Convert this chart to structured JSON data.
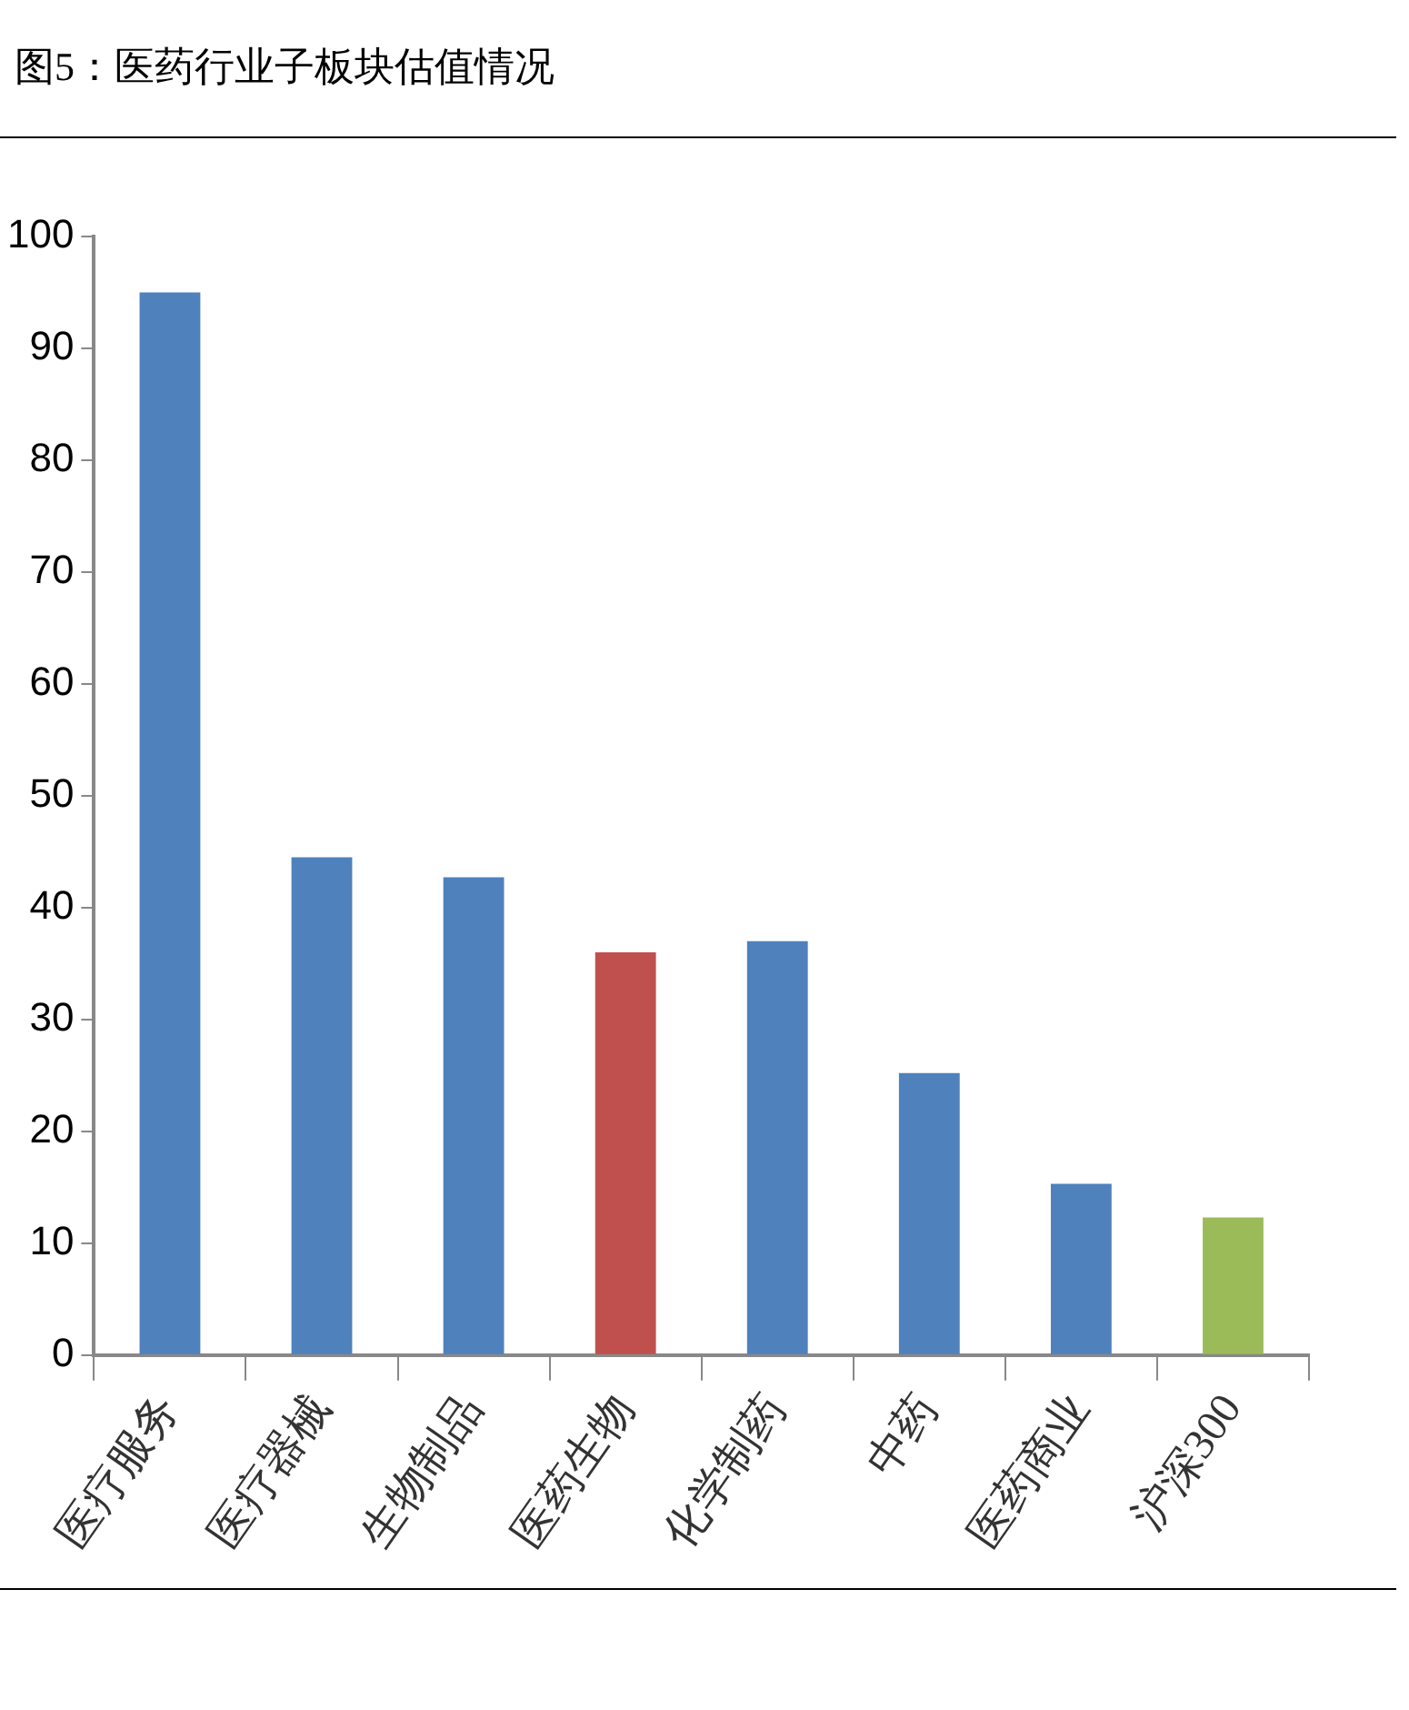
{
  "chart_data": {
    "type": "bar",
    "title": "图5：医药行业子板块估值情况",
    "categories": [
      "医疗服务",
      "医疗器械",
      "生物制品",
      "医药生物",
      "化学制药",
      "中药",
      "医药商业",
      "沪深300"
    ],
    "values": [
      95,
      44.5,
      42.7,
      36,
      37,
      25.2,
      15.3,
      12.3
    ],
    "colors": [
      "#4f81bd",
      "#4f81bd",
      "#4f81bd",
      "#c0504d",
      "#4f81bd",
      "#4f81bd",
      "#4f81bd",
      "#9bbb59"
    ],
    "ylim": [
      0,
      100
    ],
    "yticks": [
      0,
      10,
      20,
      30,
      40,
      50,
      60,
      70,
      80,
      90,
      100
    ],
    "grid": false,
    "legend": false
  }
}
